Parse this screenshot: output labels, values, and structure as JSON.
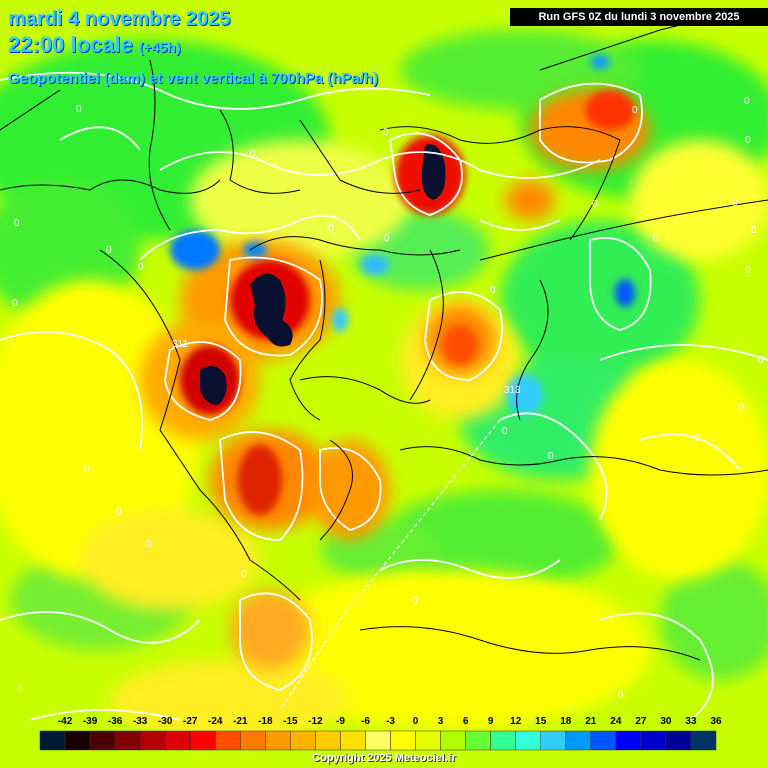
{
  "header": {
    "date": "mardi 4 novembre 2025",
    "time": "22:00 locale",
    "offset": "(+45h)",
    "parameter": "Geopotentiel (dam) et vent vertical à 700hPa (hPa/h)"
  },
  "run_info": "Run GFS 0Z du lundi 3 novembre 2025",
  "copyright": "Copyright 2025 Meteociel.fr",
  "colors": {
    "background": "#c8ff00",
    "border_lines": "#000000",
    "isolines": "#ffffff"
  },
  "legend": {
    "ticks": [
      "-42",
      "-39",
      "-36",
      "-33",
      "-30",
      "-27",
      "-24",
      "-21",
      "-18",
      "-15",
      "-12",
      "-9",
      "-6",
      "-3",
      "0",
      "3",
      "6",
      "9",
      "12",
      "15",
      "18",
      "21",
      "24",
      "27",
      "30",
      "33",
      "36"
    ],
    "colors": [
      "#001a33",
      "#1a0000",
      "#4d0000",
      "#800000",
      "#b30000",
      "#e00000",
      "#ff0000",
      "#ff4d00",
      "#ff7a00",
      "#ff9a00",
      "#ffb300",
      "#ffcc00",
      "#ffe000",
      "#ffff66",
      "#ffff00",
      "#e6ff00",
      "#b3ff00",
      "#66ff33",
      "#33ff99",
      "#33ffdd",
      "#33ccff",
      "#0099ff",
      "#0055ff",
      "#0000ff",
      "#0000cc",
      "#00009a",
      "#003366"
    ]
  },
  "contour_labels": [
    {
      "text": "0"
    },
    {
      "text": "0"
    },
    {
      "text": "0"
    },
    {
      "text": "0"
    },
    {
      "text": "0"
    },
    {
      "text": "0"
    },
    {
      "text": "0"
    },
    {
      "text": "0"
    },
    {
      "text": "0"
    },
    {
      "text": "0"
    },
    {
      "text": "0"
    },
    {
      "text": "0"
    },
    {
      "text": "0"
    },
    {
      "text": "0"
    },
    {
      "text": "0"
    },
    {
      "text": "0"
    },
    {
      "text": "0"
    },
    {
      "text": "0"
    },
    {
      "text": "0"
    },
    {
      "text": "0"
    },
    {
      "text": "0"
    },
    {
      "text": "0"
    },
    {
      "text": "0"
    },
    {
      "text": "0"
    },
    {
      "text": "0"
    },
    {
      "text": "0"
    },
    {
      "text": "0"
    },
    {
      "text": "0"
    },
    {
      "text": "0"
    },
    {
      "text": "0"
    },
    {
      "text": "311"
    },
    {
      "text": "313"
    }
  ]
}
